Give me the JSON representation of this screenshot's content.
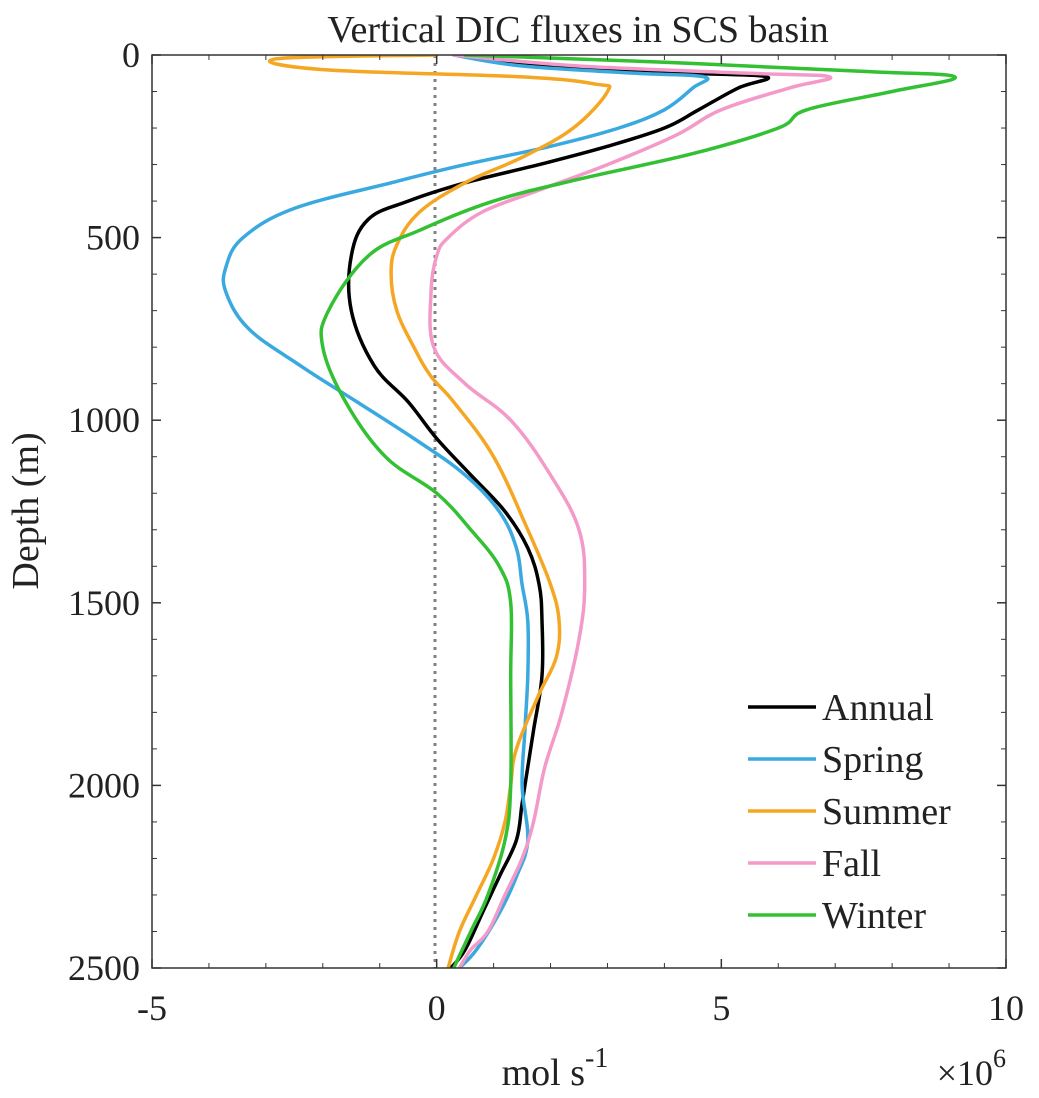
{
  "chart_data": {
    "type": "line",
    "title": "Vertical DIC fluxes in SCS basin",
    "xlabel": "mol s",
    "xlabel_superscript": "-1",
    "ylabel": "Depth (m)",
    "x_multiplier": "×10",
    "x_multiplier_exponent": "6",
    "xlim": [
      -5,
      10
    ],
    "ylim": [
      0,
      2500
    ],
    "y_reversed": true,
    "xticks": [
      "-5",
      "0",
      "5",
      "10"
    ],
    "yticks": [
      "0",
      "500",
      "1000",
      "1500",
      "2000",
      "2500"
    ],
    "xtick_values": [
      -5,
      0,
      5,
      10
    ],
    "ytick_values": [
      0,
      500,
      1000,
      1500,
      2000,
      2500
    ],
    "grid": false,
    "legend_position": "bottom-right",
    "zero_line": {
      "x": 0,
      "style": "dotted",
      "color": "#808080"
    },
    "series": [
      {
        "name": "Annual",
        "color": "#000000",
        "x": [
          0.4,
          2.0,
          4.5,
          5.8,
          5.3,
          4.6,
          4.0,
          3.0,
          1.8,
          0.5,
          -0.5,
          -1.2,
          -1.5,
          -1.5,
          -1.1,
          -0.5,
          0,
          0.6,
          1.2,
          1.6,
          1.8,
          1.85,
          1.85,
          1.7,
          1.6,
          1.5,
          1.4,
          1.1,
          0.8,
          0.5,
          0.25
        ],
        "depth": [
          0,
          30,
          50,
          60,
          90,
          150,
          200,
          250,
          300,
          350,
          400,
          450,
          550,
          700,
          850,
          950,
          1050,
          1150,
          1250,
          1350,
          1450,
          1550,
          1700,
          1850,
          1950,
          2050,
          2150,
          2250,
          2350,
          2450,
          2500
        ]
      },
      {
        "name": "Spring",
        "color": "#3aa9e0",
        "x": [
          0.3,
          1.5,
          3.5,
          4.7,
          4.5,
          4.0,
          3.2,
          2.0,
          0.5,
          -0.8,
          -2.5,
          -3.4,
          -3.7,
          -3.7,
          -3.3,
          -2.4,
          -1.4,
          -0.4,
          0.5,
          1.1,
          1.4,
          1.5,
          1.6,
          1.6,
          1.55,
          1.5,
          1.6,
          1.4,
          1.1,
          0.7,
          0.4
        ],
        "depth": [
          0,
          30,
          50,
          60,
          90,
          150,
          200,
          250,
          300,
          350,
          420,
          500,
          580,
          650,
          750,
          850,
          950,
          1050,
          1150,
          1250,
          1350,
          1450,
          1550,
          1700,
          1850,
          2000,
          2150,
          2250,
          2350,
          2450,
          2500
        ]
      },
      {
        "name": "Summer",
        "color": "#f5a623",
        "x": [
          0.0,
          -2.8,
          -2.0,
          1.5,
          2.8,
          3.0,
          2.4,
          1.5,
          0.5,
          -0.3,
          -0.7,
          -0.8,
          -0.7,
          -0.4,
          -0.1,
          0.3,
          1.0,
          1.6,
          2.0,
          2.15,
          2.1,
          1.8,
          1.4,
          1.3,
          1.2,
          1.0,
          0.7,
          0.4,
          0.2
        ],
        "depth": [
          0,
          10,
          40,
          60,
          80,
          100,
          200,
          280,
          350,
          430,
          520,
          600,
          700,
          800,
          880,
          950,
          1100,
          1300,
          1450,
          1550,
          1650,
          1750,
          1900,
          2000,
          2100,
          2200,
          2300,
          2400,
          2500
        ]
      },
      {
        "name": "Fall",
        "color": "#f49ac9",
        "x": [
          0.3,
          2.5,
          5.5,
          6.9,
          6.2,
          5.0,
          4.2,
          3.0,
          1.8,
          0.8,
          0.2,
          0,
          -0.1,
          -0.05,
          0.5,
          1.3,
          2.0,
          2.5,
          2.6,
          2.5,
          2.2,
          1.9,
          1.7,
          1.5,
          1.2,
          0.9,
          0.6,
          0.4
        ],
        "depth": [
          0,
          30,
          50,
          60,
          90,
          150,
          220,
          300,
          370,
          430,
          500,
          550,
          650,
          800,
          900,
          1000,
          1150,
          1300,
          1450,
          1600,
          1800,
          1950,
          2100,
          2200,
          2300,
          2400,
          2450,
          2500
        ]
      },
      {
        "name": "Winter",
        "color": "#33c033",
        "x": [
          0.5,
          4.0,
          7.5,
          9.1,
          8.0,
          6.5,
          6.0,
          4.5,
          2.5,
          1.0,
          -0.3,
          -1.2,
          -1.9,
          -2.0,
          -1.6,
          -0.9,
          0,
          0.6,
          1.1,
          1.3,
          1.3,
          1.3,
          1.2,
          0.9,
          0.6,
          0.3
        ],
        "depth": [
          0,
          20,
          45,
          60,
          100,
          150,
          200,
          270,
          340,
          400,
          480,
          550,
          700,
          800,
          950,
          1100,
          1200,
          1300,
          1400,
          1500,
          1700,
          2000,
          2150,
          2300,
          2400,
          2500
        ]
      }
    ]
  }
}
